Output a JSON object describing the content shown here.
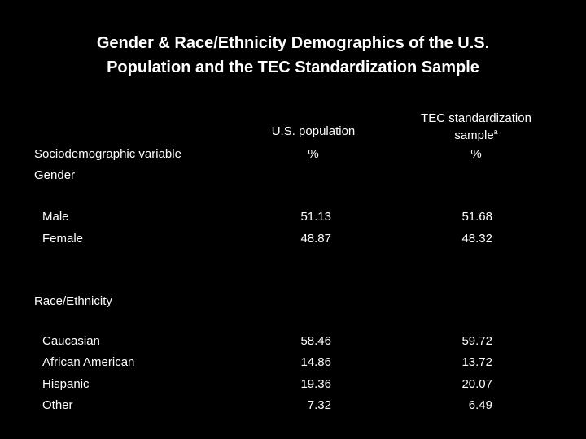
{
  "title_line1": "Gender & Race/Ethnicity Demographics of the U.S.",
  "title_line2": "Population and the TEC Standardization Sample",
  "headers": {
    "variable": "Sociodemographic variable",
    "us_population": "U.S. population",
    "tec_line1": "TEC standardization",
    "tec_line2": "sample",
    "tec_sup": "a",
    "us_unit": "%",
    "tec_unit": "%"
  },
  "sections": [
    {
      "label": "Gender",
      "rows": [
        {
          "name": "Male",
          "us": "51.13",
          "tec": "51.68"
        },
        {
          "name": "Female",
          "us": "48.87",
          "tec": "48.32"
        }
      ]
    },
    {
      "label": "Race/Ethnicity",
      "rows": [
        {
          "name": "Caucasian",
          "us": "58.46",
          "tec": "59.72"
        },
        {
          "name": "African American",
          "us": "14.86",
          "tec": "13.72"
        },
        {
          "name": "Hispanic",
          "us": "19.36",
          "tec": "20.07"
        },
        {
          "name": "Other",
          "us": "7.32",
          "tec": "6.49"
        }
      ]
    }
  ]
}
